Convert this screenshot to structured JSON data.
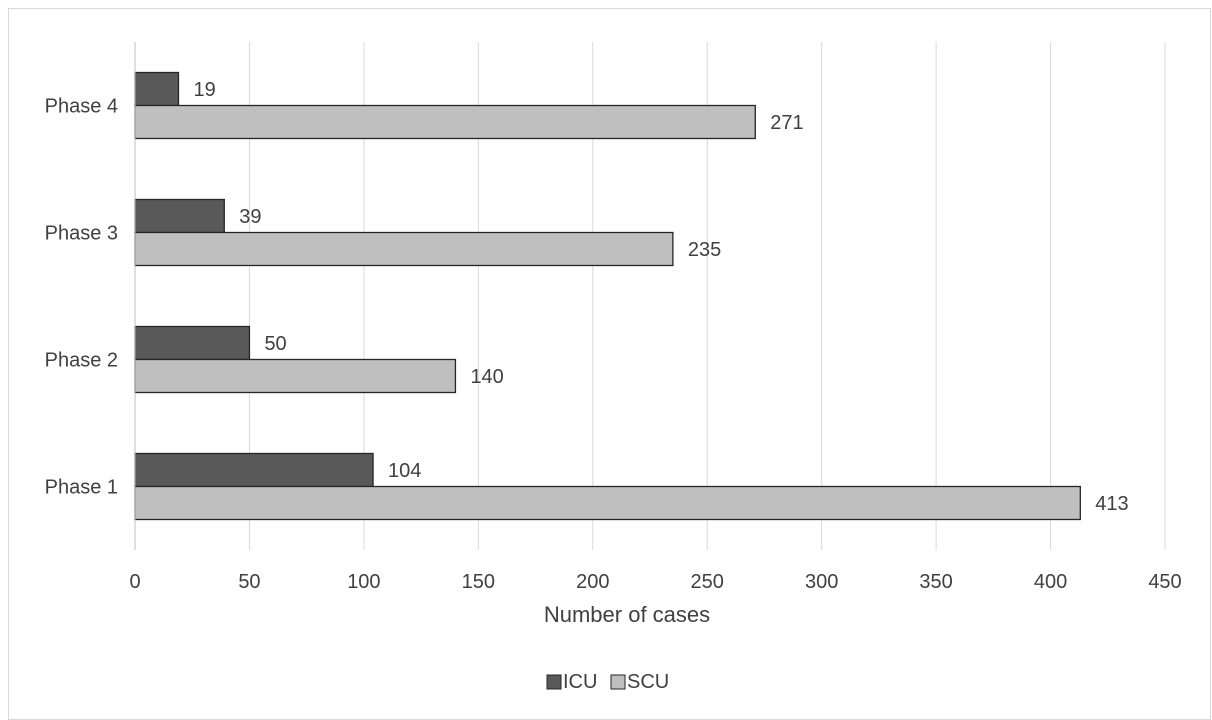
{
  "chart_data": {
    "type": "bar",
    "orientation": "horizontal",
    "categories": [
      "Phase 1",
      "Phase 2",
      "Phase 3",
      "Phase 4"
    ],
    "series": [
      {
        "name": "ICU",
        "values": [
          104,
          50,
          39,
          19
        ],
        "color": "#595959"
      },
      {
        "name": "SCU",
        "values": [
          413,
          140,
          235,
          271
        ],
        "color": "#bfbfbf"
      }
    ],
    "xlabel": "Number of cases",
    "ylabel": "",
    "xlim": [
      0,
      450
    ],
    "xticks": [
      "0",
      "50",
      "100",
      "150",
      "200",
      "250",
      "300",
      "350",
      "400",
      "450"
    ],
    "grid": "vertical",
    "legend_position": "bottom",
    "data_labels": true
  }
}
